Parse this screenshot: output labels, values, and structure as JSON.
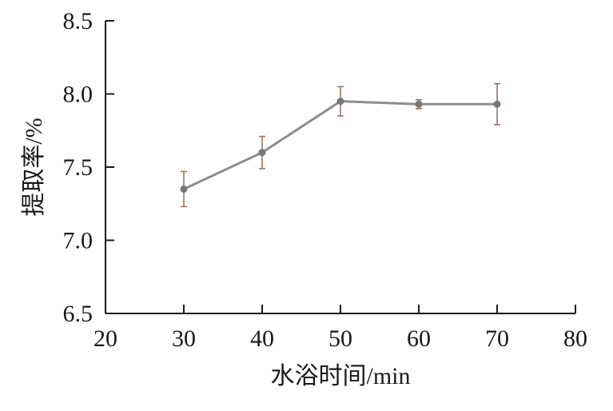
{
  "chart_data": {
    "type": "line",
    "title": "",
    "xlabel": "水浴时间/min",
    "ylabel": "提取率/%",
    "xlim": [
      20,
      80
    ],
    "ylim": [
      6.5,
      8.5
    ],
    "xticks": [
      "20",
      "30",
      "40",
      "50",
      "60",
      "70",
      "80"
    ],
    "yticks": [
      "6.5",
      "7.0",
      "7.5",
      "8.0",
      "8.5"
    ],
    "grid": false,
    "legend": "none",
    "series": [
      {
        "x": [
          30,
          40,
          50,
          60,
          70
        ],
        "y": [
          7.35,
          7.6,
          7.95,
          7.93,
          7.93
        ],
        "err": [
          0.12,
          0.11,
          0.1,
          0.03,
          0.14
        ],
        "line_color": "#8c8c8c",
        "marker_color": "#777777",
        "errorbar_color": "#9b6b5a"
      }
    ]
  }
}
